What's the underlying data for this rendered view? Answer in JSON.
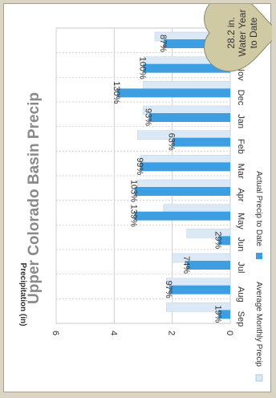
{
  "chart_data": {
    "type": "bar",
    "title": "Upper Colorado Basin Precip",
    "ylabel": "Precipitation (in)",
    "ylim": [
      0,
      6
    ],
    "yticks": [
      0,
      2,
      4,
      6
    ],
    "categories": [
      "Oct",
      "Nov",
      "Dec",
      "Jan",
      "Feb",
      "Mar",
      "Apr",
      "May",
      "Jun",
      "Jul",
      "Aug",
      "Sep"
    ],
    "series": [
      {
        "name": "Average Monthly Precip",
        "color": "#dbe9f6",
        "values": [
          2.6,
          3.0,
          3.0,
          3.0,
          3.2,
          3.1,
          3.2,
          2.3,
          1.5,
          2.0,
          2.2,
          2.2
        ]
      },
      {
        "name": "Actual Precip to Date",
        "color": "#3d9ee1",
        "values": [
          2.3,
          3.0,
          3.9,
          2.8,
          2.0,
          3.1,
          3.3,
          3.3,
          0.4,
          1.5,
          2.1,
          0.4
        ]
      }
    ],
    "data_labels": [
      "87%",
      "100%",
      "130%",
      "93%",
      "63%",
      "99%",
      "103%",
      "139%",
      "29%",
      "74%",
      "97%",
      "19%"
    ],
    "grid": true,
    "legend_position": "bottom",
    "annotation": {
      "lines": [
        "28.2 in.",
        "Water Year",
        "to Date"
      ],
      "color": "#cfc9a4"
    },
    "background": "#d9d4c4"
  }
}
